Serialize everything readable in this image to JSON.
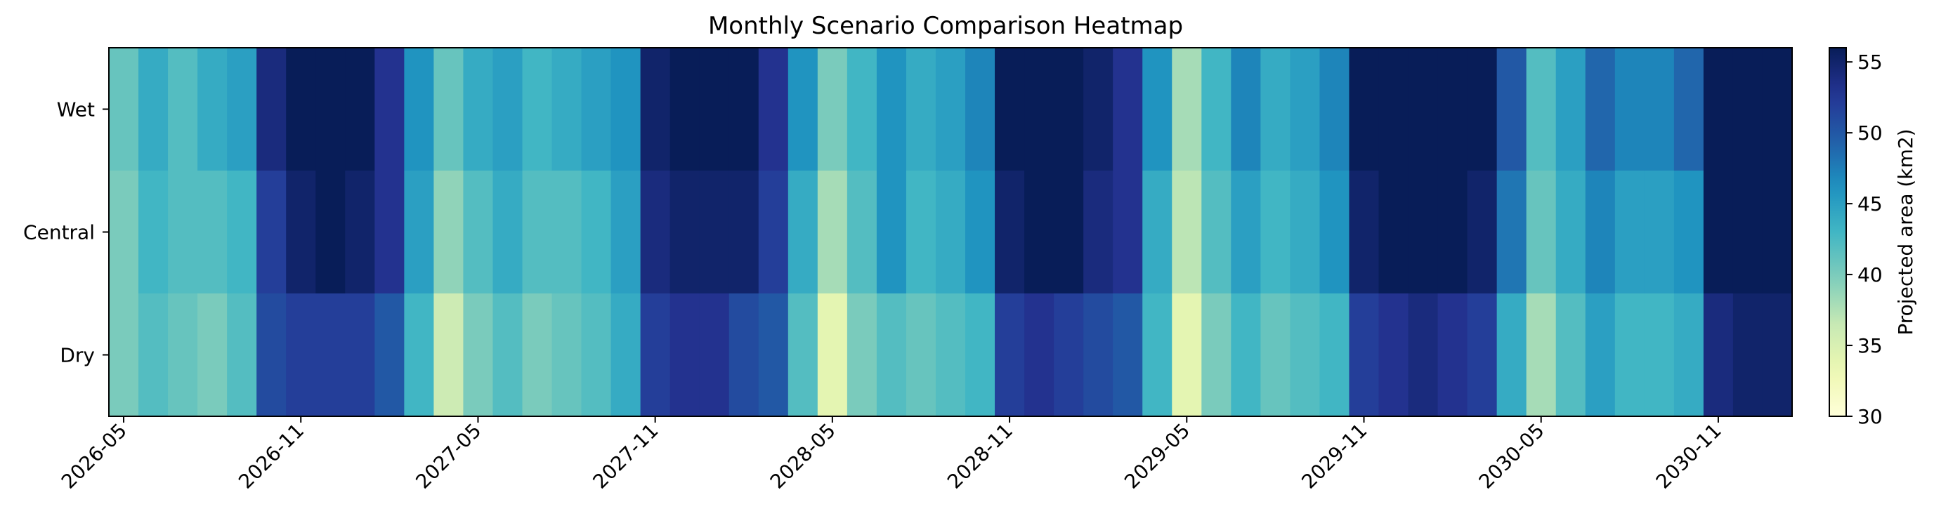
{
  "chart_data": {
    "type": "heatmap",
    "title": "Monthly Scenario Comparison Heatmap",
    "xlabel": "",
    "ylabel": "",
    "rows": [
      "Wet",
      "Central",
      "Dry"
    ],
    "x_start": "2026-05",
    "x_end": "2031-01",
    "x_ticks": [
      "2026-05",
      "2026-11",
      "2027-05",
      "2027-11",
      "2028-05",
      "2028-11",
      "2029-05",
      "2029-11",
      "2030-05",
      "2030-11"
    ],
    "values": [
      [
        41,
        44,
        42,
        44,
        45,
        54,
        56,
        56,
        56,
        53,
        46,
        41,
        44,
        45,
        43,
        44,
        45,
        46,
        55,
        56,
        56,
        56,
        53,
        46,
        40,
        43,
        46,
        44,
        45,
        47,
        56,
        56,
        56,
        55,
        53,
        46,
        38,
        43,
        47,
        44,
        45,
        47,
        56,
        56,
        56,
        56,
        56,
        50,
        42,
        45,
        49,
        47,
        47,
        49,
        56,
        56,
        56
      ],
      [
        40,
        43,
        42,
        42,
        43,
        52,
        55,
        56,
        55,
        53,
        45,
        39,
        42,
        44,
        42,
        42,
        43,
        45,
        54,
        55,
        55,
        55,
        52,
        44,
        38,
        42,
        46,
        43,
        44,
        46,
        55,
        56,
        56,
        54,
        53,
        44,
        37,
        42,
        45,
        43,
        44,
        46,
        55,
        56,
        56,
        56,
        55,
        48,
        41,
        44,
        47,
        45,
        45,
        46,
        56,
        56,
        56
      ],
      [
        40,
        42,
        41,
        40,
        42,
        51,
        52,
        52,
        52,
        50,
        43,
        36,
        40,
        42,
        40,
        41,
        42,
        44,
        52,
        53,
        53,
        51,
        50,
        42,
        34,
        40,
        42,
        41,
        42,
        43,
        52,
        53,
        52,
        51,
        50,
        43,
        34,
        40,
        43,
        41,
        42,
        43,
        52,
        53,
        54,
        53,
        52,
        44,
        38,
        42,
        45,
        43,
        43,
        44,
        54,
        55,
        55
      ]
    ],
    "colorbar": {
      "label": "Projected area (km2)",
      "range": [
        30,
        56
      ],
      "ticks": [
        30,
        35,
        40,
        45,
        50,
        55
      ]
    },
    "colormap": "YlGnBu",
    "legend": "none",
    "grid": false
  }
}
